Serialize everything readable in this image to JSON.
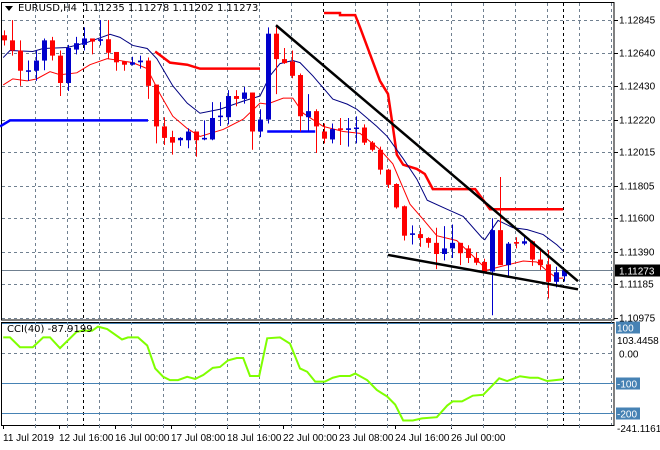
{
  "header": {
    "symbol": "EURUSD,H4",
    "ohlc": "1.11235 1.11278 1.11202 1.11273"
  },
  "cci_label": {
    "name": "CCI(40)",
    "value": "-87.9199"
  },
  "colors": {
    "bull": "#0000CC",
    "bear": "#FF0000",
    "ma_fast": "#FF0000",
    "ma_slow": "#000080",
    "cci": "#7FFF00",
    "trend": "#000000",
    "level": "#4682B4",
    "grid": "#708090"
  },
  "chart_data": [
    {
      "type": "candlestick",
      "title": "EURUSD,H4",
      "ylim": [
        1.1096,
        1.1289
      ],
      "yticks": [
        "1.12845",
        "1.12640",
        "1.12430",
        "1.12220",
        "1.12015",
        "1.11805",
        "1.11600",
        "1.11390",
        "1.11185",
        "1.10975"
      ],
      "current_price": "1.11273",
      "xticks": [
        {
          "i": 0,
          "label": "11 Jul 2019"
        },
        {
          "i": 7,
          "label": "12 Jul 16:00"
        },
        {
          "i": 14,
          "label": "16 Jul 00:00"
        },
        {
          "i": 21,
          "label": "17 Jul 08:00"
        },
        {
          "i": 28,
          "label": "18 Jul 16:00"
        },
        {
          "i": 35,
          "label": "22 Jul 00:00"
        },
        {
          "i": 42,
          "label": "23 Jul 08:00"
        },
        {
          "i": 49,
          "label": "24 Jul 16:00"
        },
        {
          "i": 56,
          "label": "26 Jul 00:00"
        }
      ],
      "week_separators": [
        10,
        40,
        70
      ],
      "ohlc": [
        [
          1.1275,
          1.12781,
          1.12686,
          1.12718
        ],
        [
          1.12718,
          1.12845,
          1.12622,
          1.12654
        ],
        [
          1.12654,
          1.12718,
          1.12432,
          1.12527
        ],
        [
          1.1252,
          1.12591,
          1.12463,
          1.1253
        ],
        [
          1.12527,
          1.12654,
          1.12463,
          1.12591
        ],
        [
          1.12591,
          1.1273,
          1.1253,
          1.12718
        ],
        [
          1.12718,
          1.1274,
          1.12591,
          1.12622
        ],
        [
          1.12622,
          1.12654,
          1.12368,
          1.1245
        ],
        [
          1.1245,
          1.1269,
          1.124,
          1.1267
        ],
        [
          1.1266,
          1.1274,
          1.1263,
          1.127
        ],
        [
          1.1269,
          1.128,
          1.12654,
          1.1273
        ],
        [
          1.1273,
          1.1273,
          1.1263,
          1.1271
        ],
        [
          1.12715,
          1.12845,
          1.12686,
          1.12725
        ],
        [
          1.12725,
          1.12845,
          1.126,
          1.1264
        ],
        [
          1.12645,
          1.12645,
          1.12527,
          1.1258
        ],
        [
          1.12585,
          1.12585,
          1.12527,
          1.12565
        ],
        [
          1.12565,
          1.12615,
          1.1256,
          1.1258
        ],
        [
          1.1258,
          1.12622,
          1.1254,
          1.12591
        ],
        [
          1.12591,
          1.1261,
          1.1235,
          1.12432
        ],
        [
          1.1244,
          1.1244,
          1.1207,
          1.12177
        ],
        [
          1.12177,
          1.12235,
          1.1206,
          1.12105
        ],
        [
          1.1211,
          1.1215,
          1.12,
          1.12075
        ],
        [
          1.1209,
          1.1211,
          1.12055,
          1.12105
        ],
        [
          1.1209,
          1.12165,
          1.1204,
          1.12145
        ],
        [
          1.12145,
          1.12145,
          1.11986,
          1.1209
        ],
        [
          1.12095,
          1.12215,
          1.1209,
          1.12105
        ],
        [
          1.12095,
          1.1233,
          1.1209,
          1.1223
        ],
        [
          1.12235,
          1.1233,
          1.1218,
          1.12245
        ],
        [
          1.12235,
          1.12405,
          1.1219,
          1.12368
        ],
        [
          1.12368,
          1.12405,
          1.12304,
          1.1235
        ],
        [
          1.1235,
          1.12425,
          1.1232,
          1.1239
        ],
        [
          1.1239,
          1.1239,
          1.1203,
          1.12145
        ],
        [
          1.12145,
          1.12285,
          1.1211,
          1.1222
        ],
        [
          1.1222,
          1.128,
          1.12195,
          1.1276
        ],
        [
          1.1276,
          1.12815,
          1.1238,
          1.126
        ],
        [
          1.126,
          1.1267,
          1.1257,
          1.12575
        ],
        [
          1.12585,
          1.12654,
          1.1248,
          1.12495
        ],
        [
          1.125,
          1.1251,
          1.12145,
          1.12241
        ],
        [
          1.12235,
          1.1238,
          1.12145,
          1.12273
        ],
        [
          1.12273,
          1.12285,
          1.1201,
          1.12177
        ],
        [
          1.12145,
          1.12195,
          1.1207,
          1.121
        ],
        [
          1.12095,
          1.12195,
          1.1207,
          1.1216
        ],
        [
          1.12165,
          1.1223,
          1.1206,
          1.12155
        ],
        [
          1.12155,
          1.1223,
          1.1205,
          1.12165
        ],
        [
          1.12165,
          1.1224,
          1.1207,
          1.1217
        ],
        [
          1.1217,
          1.1219,
          1.1206,
          1.12075
        ],
        [
          1.12075,
          1.12085,
          1.1202,
          1.1203
        ],
        [
          1.1203,
          1.1205,
          1.11875,
          1.11905
        ],
        [
          1.11905,
          1.1191,
          1.1179,
          1.1181
        ],
        [
          1.11815,
          1.1182,
          1.1166,
          1.11668
        ],
        [
          1.11675,
          1.1168,
          1.1146,
          1.1149
        ],
        [
          1.11495,
          1.11555,
          1.11435,
          1.11505
        ],
        [
          1.115,
          1.1154,
          1.1142,
          1.11475
        ],
        [
          1.11475,
          1.1148,
          1.11414,
          1.11445
        ],
        [
          1.11445,
          1.1154,
          1.1128,
          1.11375
        ],
        [
          1.11375,
          1.1155,
          1.11335,
          1.1141
        ],
        [
          1.1141,
          1.1156,
          1.1135,
          1.11445
        ],
        [
          1.11445,
          1.11445,
          1.11305,
          1.1138
        ],
        [
          1.1141,
          1.1143,
          1.11318,
          1.1135
        ],
        [
          1.1135,
          1.11385,
          1.11305,
          1.1132
        ],
        [
          1.11325,
          1.11345,
          1.11255,
          1.11265
        ],
        [
          1.11265,
          1.116,
          1.1099,
          1.11525
        ],
        [
          1.11525,
          1.11859,
          1.11305,
          1.11305
        ],
        [
          1.11305,
          1.1145,
          1.11235,
          1.1144
        ],
        [
          1.1145,
          1.1148,
          1.1141,
          1.1144
        ],
        [
          1.1144,
          1.1149,
          1.1143,
          1.11455
        ],
        [
          1.11455,
          1.1146,
          1.113,
          1.1134
        ],
        [
          1.1134,
          1.11414,
          1.11275,
          1.11305
        ],
        [
          1.1131,
          1.114,
          1.11095,
          1.112
        ],
        [
          1.112,
          1.11295,
          1.11165,
          1.1126
        ],
        [
          1.11235,
          1.11278,
          1.11202,
          1.11273
        ]
      ],
      "ma_slow": [
        [
          -0.1,
          1.1261
        ],
        [
          0.75,
          1.12654
        ],
        [
          3.6,
          1.12648
        ],
        [
          4.9,
          1.12667
        ],
        [
          7.9,
          1.12673
        ],
        [
          10.4,
          1.12705
        ],
        [
          13.25,
          1.12756
        ],
        [
          14.5,
          1.12737
        ],
        [
          16.1,
          1.12686
        ],
        [
          17.9,
          1.12667
        ],
        [
          19.1,
          1.12603
        ],
        [
          21.1,
          1.12432
        ],
        [
          22.9,
          1.12323
        ],
        [
          24.5,
          1.1226
        ],
        [
          27,
          1.12285
        ],
        [
          29.9,
          1.12336
        ],
        [
          32,
          1.12368
        ],
        [
          33.25,
          1.12495
        ],
        [
          34.5,
          1.12572
        ],
        [
          36.1,
          1.12591
        ],
        [
          37,
          1.12578
        ],
        [
          38.6,
          1.12495
        ],
        [
          41.1,
          1.12349
        ],
        [
          42.9,
          1.12317
        ],
        [
          44.1,
          1.12285
        ],
        [
          46.6,
          1.12177
        ],
        [
          47.9,
          1.12114
        ],
        [
          49.9,
          1.11974
        ],
        [
          51.6,
          1.11846
        ],
        [
          52.9,
          1.11713
        ],
        [
          55.4,
          1.11656
        ],
        [
          57.4,
          1.11611
        ],
        [
          59.75,
          1.11477
        ],
        [
          60.1,
          1.11465
        ],
        [
          61.75,
          1.11586
        ],
        [
          63.6,
          1.11541
        ],
        [
          65.4,
          1.11528
        ],
        [
          67.4,
          1.11497
        ],
        [
          69.1,
          1.11433
        ],
        [
          69.9,
          1.11395
        ]
      ],
      "ma_fast": [
        [
          -0.1,
          1.12438
        ],
        [
          1.1,
          1.12476
        ],
        [
          2.9,
          1.12463
        ],
        [
          4.1,
          1.12476
        ],
        [
          5.75,
          1.12521
        ],
        [
          7,
          1.12502
        ],
        [
          9.1,
          1.12514
        ],
        [
          10.75,
          1.12565
        ],
        [
          12.9,
          1.12603
        ],
        [
          14.5,
          1.12591
        ],
        [
          16.1,
          1.12578
        ],
        [
          17.9,
          1.1254
        ],
        [
          19.5,
          1.12381
        ],
        [
          21.1,
          1.12241
        ],
        [
          22.9,
          1.12164
        ],
        [
          24.5,
          1.12114
        ],
        [
          27.4,
          1.12158
        ],
        [
          29.9,
          1.12222
        ],
        [
          32,
          1.12323
        ],
        [
          32.9,
          1.12317
        ],
        [
          34.9,
          1.12355
        ],
        [
          36.1,
          1.12355
        ],
        [
          37.4,
          1.1226
        ],
        [
          39.9,
          1.12177
        ],
        [
          42.4,
          1.12145
        ],
        [
          44.5,
          1.12133
        ],
        [
          47,
          1.12031
        ],
        [
          48.6,
          1.11942
        ],
        [
          50.75,
          1.11688
        ],
        [
          52.4,
          1.11592
        ],
        [
          54.1,
          1.1149
        ],
        [
          56.6,
          1.11459
        ],
        [
          58.6,
          1.11363
        ],
        [
          60.4,
          1.11274
        ],
        [
          62.4,
          1.113
        ],
        [
          64.9,
          1.11331
        ],
        [
          66.6,
          1.11325
        ],
        [
          67.9,
          1.11268
        ],
        [
          69.1,
          1.11223
        ],
        [
          69.9,
          1.11223
        ]
      ],
      "stop_lines": [
        {
          "dir": "up",
          "points": [
            [
              -0.5,
              1.12177
            ],
            [
              0.75,
              1.12215
            ],
            [
              18,
              1.12215
            ]
          ]
        },
        {
          "dir": "up",
          "points": [
            [
              32.9,
              1.12145
            ],
            [
              38.9,
              1.12145
            ]
          ]
        },
        {
          "dir": "down",
          "points": [
            [
              18.9,
              1.12648
            ],
            [
              20.75,
              1.12578
            ],
            [
              22.9,
              1.12565
            ],
            [
              24.5,
              1.1254
            ],
            [
              32,
              1.1254
            ]
          ]
        },
        {
          "dir": "down",
          "points": [
            [
              40,
              1.1289
            ],
            [
              42,
              1.1289
            ],
            [
              42,
              1.12877
            ],
            [
              43.9,
              1.12877
            ],
            [
              44.5,
              1.128
            ],
            [
              47,
              1.12463
            ],
            [
              48,
              1.12381
            ],
            [
              48.6,
              1.12177
            ],
            [
              49.1,
              1.12
            ],
            [
              49.9,
              1.11936
            ],
            [
              51.6,
              1.1191
            ],
            [
              52.6,
              1.11878
            ],
            [
              53.6,
              1.11783
            ],
            [
              58.9,
              1.11783
            ],
            [
              60.75,
              1.11656
            ],
            [
              69.9,
              1.11656
            ]
          ]
        }
      ],
      "trendlines": [
        [
          [
            34,
            1.12813
          ],
          [
            71.75,
            1.11204
          ]
        ],
        [
          [
            48,
            1.11369
          ],
          [
            71.75,
            1.11153
          ]
        ]
      ]
    },
    {
      "type": "line",
      "title": "CCI(40)",
      "ylim": [
        -241.1161,
        103.4458
      ],
      "yticks": [
        {
          "v": 0,
          "label": "0.00"
        }
      ],
      "levels": [
        {
          "v": 100,
          "label": "100"
        },
        {
          "v": -100,
          "label": "-100"
        },
        {
          "v": -200,
          "label": "-200"
        }
      ],
      "max_label": "103.4458",
      "min_label": "-241.1161",
      "series": [
        [
          -0.1,
          52
        ],
        [
          0.75,
          52
        ],
        [
          2,
          19
        ],
        [
          3.6,
          19
        ],
        [
          4.9,
          52
        ],
        [
          5.75,
          52
        ],
        [
          7,
          16
        ],
        [
          9.1,
          71
        ],
        [
          9.9,
          74
        ],
        [
          11,
          74
        ],
        [
          11.75,
          88
        ],
        [
          12.9,
          80
        ],
        [
          14.75,
          45
        ],
        [
          15.5,
          52
        ],
        [
          16.75,
          52
        ],
        [
          17.9,
          25
        ],
        [
          18.9,
          -52
        ],
        [
          19.9,
          -80
        ],
        [
          20.75,
          -91
        ],
        [
          21.75,
          -91
        ],
        [
          22.9,
          -80
        ],
        [
          23.9,
          -87
        ],
        [
          24.9,
          -74
        ],
        [
          26.1,
          -50
        ],
        [
          27,
          -47
        ],
        [
          28,
          -25
        ],
        [
          29.1,
          -17
        ],
        [
          29.9,
          -17
        ],
        [
          30.75,
          -77
        ],
        [
          31.9,
          -77
        ],
        [
          32.9,
          49
        ],
        [
          34.5,
          52
        ],
        [
          35.75,
          31
        ],
        [
          37,
          -52
        ],
        [
          37.9,
          -63
        ],
        [
          38.9,
          -96
        ],
        [
          40.1,
          -96
        ],
        [
          41.1,
          -83
        ],
        [
          42,
          -77
        ],
        [
          43.25,
          -77
        ],
        [
          43.9,
          -69
        ],
        [
          45.4,
          -91
        ],
        [
          46.6,
          -124
        ],
        [
          47.9,
          -146
        ],
        [
          48.9,
          -173
        ],
        [
          49.9,
          -226
        ],
        [
          51.1,
          -226
        ],
        [
          52.25,
          -219
        ],
        [
          54.1,
          -215
        ],
        [
          55.4,
          -176
        ],
        [
          56.1,
          -162
        ],
        [
          57.25,
          -162
        ],
        [
          58.6,
          -143
        ],
        [
          59.9,
          -140
        ],
        [
          61,
          -110
        ],
        [
          61.9,
          -85
        ],
        [
          62.9,
          -94
        ],
        [
          64.5,
          -78
        ],
        [
          65.75,
          -83
        ],
        [
          66.75,
          -83
        ],
        [
          67.9,
          -94
        ],
        [
          68.9,
          -91
        ],
        [
          69.9,
          -88
        ]
      ]
    }
  ]
}
